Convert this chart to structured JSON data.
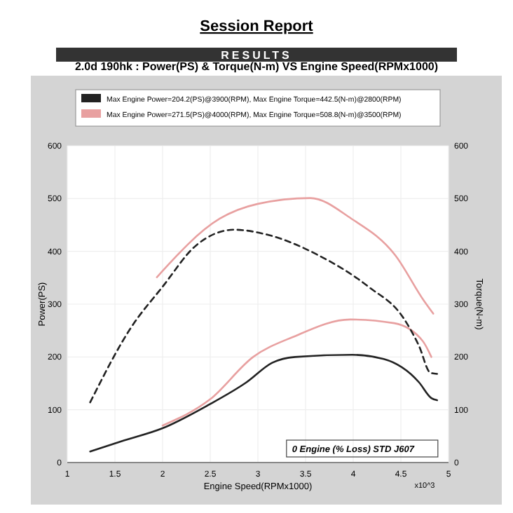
{
  "chart_data": {
    "type": "line",
    "title": "2.0d 190hk : Power(PS) & Torque(N-m) VS Engine Speed(RPMx1000)",
    "xlabel": "Engine Speed(RPMx1000)",
    "ylabel": "Power(PS)",
    "y2label": "Torque(N-m)",
    "annotations": [
      "Session Report",
      "RESULTS",
      "0 Engine (% Loss) STD J607",
      "x10^3"
    ],
    "xlim": [
      1,
      5
    ],
    "xticks": [
      1,
      1.5,
      2,
      2.5,
      3,
      3.5,
      4,
      4.5,
      5
    ],
    "ylim": [
      0,
      600
    ],
    "yticks": [
      0,
      100,
      200,
      300,
      400,
      500,
      600
    ],
    "y2lim": [
      0,
      600
    ],
    "y2ticks": [
      0,
      100,
      200,
      300,
      400,
      500,
      600
    ],
    "grid": true,
    "legend": "top",
    "marker": "none",
    "series": [
      {
        "name": "Max Engine Power=204.2(PS)@3900(RPM), Max Engine Torque=442.5(N-m)@2800(RPM)",
        "color": "#222222",
        "line_style": "solid",
        "x": [
          1.24,
          1.6,
          2.0,
          2.48,
          2.88,
          3.15,
          3.39,
          3.99,
          4.32,
          4.69,
          4.82,
          4.88
        ],
        "values": [
          21,
          42,
          65,
          109,
          152,
          189,
          200,
          204,
          196,
          152,
          122,
          118
        ]
      },
      {
        "name": "Max Engine Power=271.5(PS)@4000(RPM), Max Engine Torque=508.8(N-m)@3500(RPM)",
        "color": "#e8a0a0",
        "line_style": "solid",
        "x": [
          2.0,
          2.5,
          2.95,
          3.37,
          3.97,
          4.43,
          4.73,
          4.82
        ],
        "values": [
          70,
          120,
          200,
          238,
          271,
          264,
          230,
          200
        ]
      },
      {
        "color": "#222222",
        "line_style": "dashed",
        "x": [
          1.24,
          1.67,
          2.0,
          2.35,
          2.75,
          3.09,
          3.62,
          4.16,
          4.53,
          4.69,
          4.81,
          4.88
        ],
        "values": [
          114,
          256,
          333,
          411,
          441,
          432,
          394,
          333,
          273,
          221,
          170,
          168
        ]
      },
      {
        "color": "#e8a0a0",
        "line_style": "solid",
        "x": [
          1.94,
          2.6,
          3.0,
          3.55,
          3.98,
          4.44,
          4.74,
          4.84
        ],
        "values": [
          351,
          462,
          490,
          501,
          462,
          393,
          307,
          282
        ]
      }
    ]
  }
}
